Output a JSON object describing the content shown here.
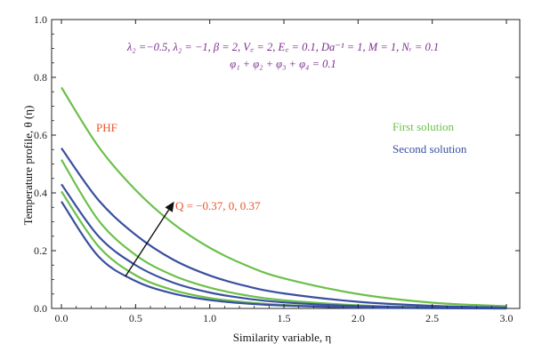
{
  "chart_data": {
    "type": "line",
    "xlabel": "Similarity variable, η",
    "ylabel": "Temperature profile, θ (η)",
    "xlim": [
      0.0,
      3.0
    ],
    "ylim": [
      0.0,
      1.0
    ],
    "xticks": [
      0.0,
      0.5,
      1.0,
      1.5,
      2.0,
      2.5,
      3.0
    ],
    "xtick_labels": [
      "0.0",
      "0.5",
      "1.0",
      "1.5",
      "2.0",
      "2.5",
      "3.0"
    ],
    "yticks": [
      0.0,
      0.2,
      0.4,
      0.6,
      0.8,
      1.0
    ],
    "ytick_labels": [
      "0.0",
      "0.2",
      "0.4",
      "0.6",
      "0.8",
      "1.0"
    ],
    "grid": false,
    "annotations": {
      "params_line1": "λ₂ =−0.5, λ₂ = −1, β = 2, V꜀ = 2, E꜀ = 0.1, Da⁻¹ = 1, M = 1, Nᵣ = 0.1",
      "params_line2": "φ₁ + φ₂ + φ₃ + φ₄ = 0.1",
      "phf": "PHF",
      "q_label": "Q = −0.37, 0, 0.37",
      "legend_first": "First solution",
      "legend_second": "Second solution"
    },
    "colors": {
      "first": "#6cc04a",
      "second": "#3a4fa0",
      "params": "#7b2d8e",
      "accent": "#e8562a"
    },
    "series": [
      {
        "name": "First solution",
        "group": "first",
        "x": [
          0,
          0.25,
          0.5,
          0.75,
          1.0,
          1.25,
          1.5,
          2.0,
          2.5,
          3.0
        ],
        "y": [
          0.765,
          0.56,
          0.41,
          0.295,
          0.21,
          0.148,
          0.104,
          0.05,
          0.02,
          0.008
        ]
      },
      {
        "name": "First solution",
        "group": "first",
        "x": [
          0,
          0.25,
          0.5,
          0.75,
          1.0,
          1.25,
          1.5,
          2.0,
          2.5,
          3.0
        ],
        "y": [
          0.515,
          0.305,
          0.185,
          0.115,
          0.072,
          0.045,
          0.028,
          0.011,
          0.004,
          0.001
        ]
      },
      {
        "name": "First solution",
        "group": "first",
        "x": [
          0,
          0.25,
          0.5,
          0.75,
          1.0,
          1.25,
          1.5,
          2.0,
          2.5,
          3.0
        ],
        "y": [
          0.405,
          0.215,
          0.115,
          0.064,
          0.036,
          0.021,
          0.012,
          0.004,
          0.001,
          0.0
        ]
      },
      {
        "name": "Second solution",
        "group": "second",
        "x": [
          0,
          0.25,
          0.5,
          0.75,
          1.0,
          1.25,
          1.5,
          2.0,
          2.5,
          3.0
        ],
        "y": [
          0.555,
          0.375,
          0.255,
          0.17,
          0.114,
          0.077,
          0.052,
          0.023,
          0.009,
          0.003
        ]
      },
      {
        "name": "Second solution",
        "group": "second",
        "x": [
          0,
          0.25,
          0.5,
          0.75,
          1.0,
          1.25,
          1.5,
          2.0,
          2.5,
          3.0
        ],
        "y": [
          0.43,
          0.25,
          0.15,
          0.09,
          0.055,
          0.034,
          0.021,
          0.008,
          0.003,
          0.001
        ]
      },
      {
        "name": "Second solution",
        "group": "second",
        "x": [
          0,
          0.25,
          0.5,
          0.75,
          1.0,
          1.25,
          1.5,
          2.0,
          2.5,
          3.0
        ],
        "y": [
          0.37,
          0.18,
          0.095,
          0.052,
          0.029,
          0.017,
          0.01,
          0.003,
          0.001,
          0.0
        ]
      }
    ],
    "arrow": {
      "from": [
        0.43,
        0.11
      ],
      "to": [
        0.76,
        0.37
      ]
    }
  }
}
